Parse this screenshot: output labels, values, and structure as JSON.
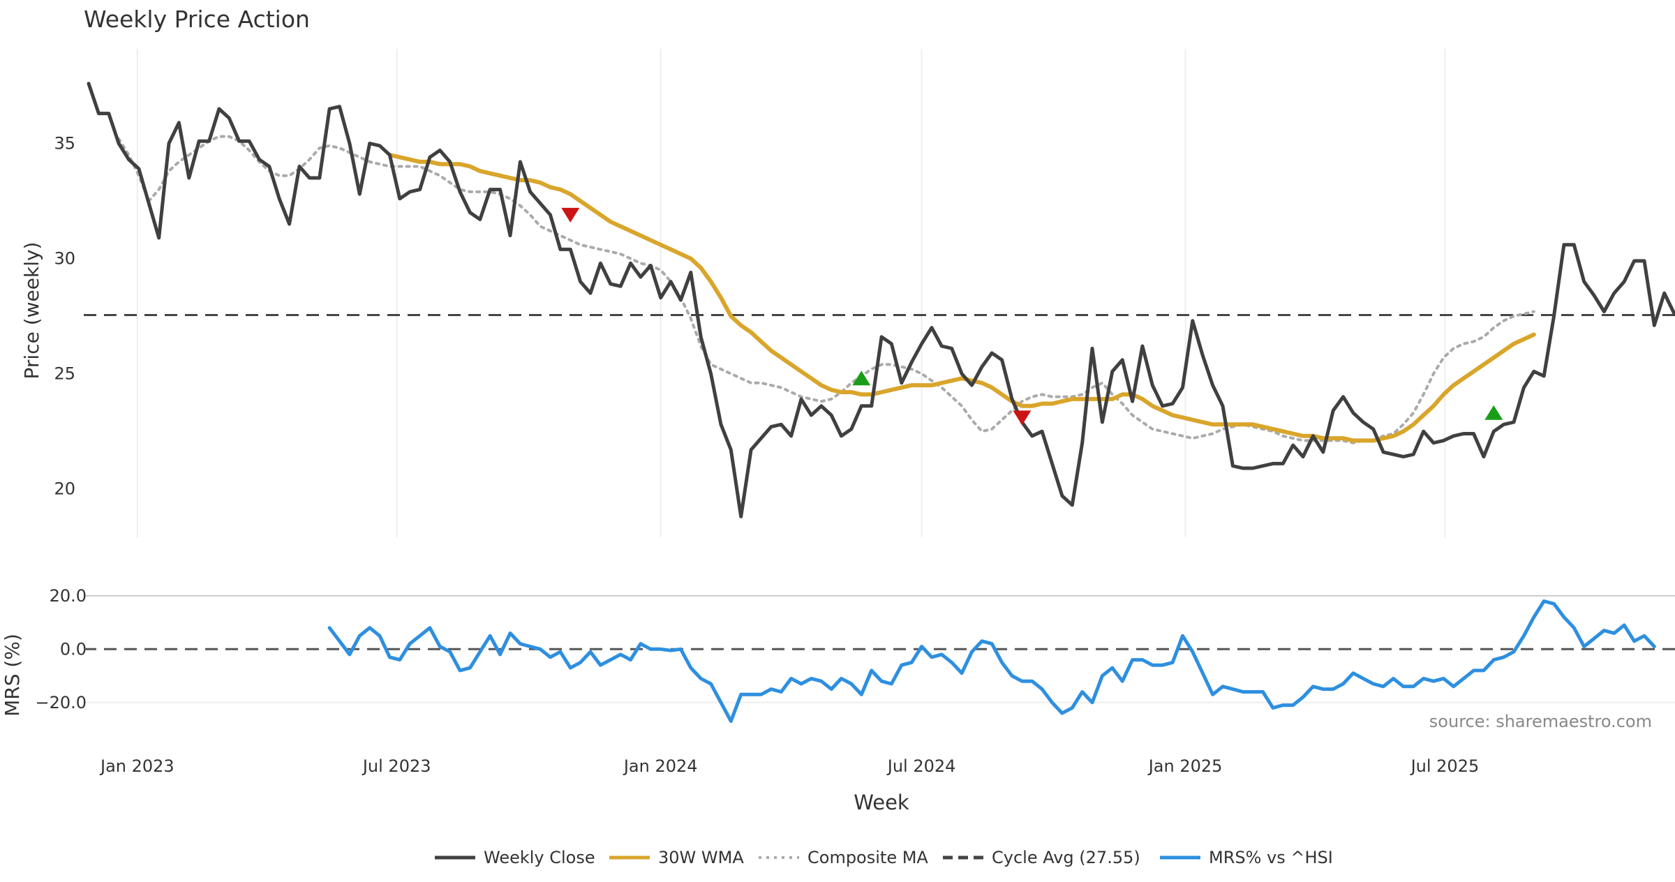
{
  "title": "Weekly Price Action",
  "source": "source: sharemaestro.com",
  "colors": {
    "weekly_close": "#404040",
    "wma": "#d9a52b",
    "composite_ma": "#aaaaaa",
    "cycle_avg": "#444444",
    "mrs": "#2e8fe0",
    "buy_marker": "#1a9e1a",
    "sell_marker": "#cc1414",
    "grid": "#eeeeee"
  },
  "legend": [
    {
      "label": "Weekly Close",
      "style": "solid",
      "color_key": "weekly_close"
    },
    {
      "label": "30W WMA",
      "style": "solid",
      "color_key": "wma"
    },
    {
      "label": "Composite MA",
      "style": "dotted",
      "color_key": "composite_ma"
    },
    {
      "label": "Cycle Avg (27.55)",
      "style": "dashed",
      "color_key": "cycle_avg"
    },
    {
      "label": "MRS% vs ^HSI",
      "style": "solid",
      "color_key": "mrs"
    }
  ],
  "chart_data": [
    {
      "type": "line",
      "panel": "price",
      "ylabel": "Price (weekly)",
      "xlabel": "Week",
      "x_ticks": [
        "Jan 2023",
        "Jul 2023",
        "Jan 2024",
        "Jul 2024",
        "Jan 2025",
        "Jul 2025"
      ],
      "y_ticks": [
        "20",
        "25",
        "30",
        "35"
      ],
      "ylim": [
        17.9,
        38.5
      ],
      "grid": "vertical",
      "reference_line": {
        "name": "Cycle Avg (27.55)",
        "value": 27.55
      },
      "series": [
        {
          "name": "Weekly Close",
          "x_start": "2022-11-28",
          "step_days": 7,
          "values": [
            37.6,
            36.3,
            36.3,
            35.0,
            34.3,
            33.9,
            32.4,
            30.9,
            35.0,
            35.9,
            33.5,
            35.1,
            35.1,
            36.5,
            36.1,
            35.1,
            35.1,
            34.3,
            34.0,
            32.6,
            31.5,
            34.0,
            33.5,
            33.5,
            36.5,
            36.6,
            35.0,
            32.8,
            35.0,
            34.9,
            34.5,
            32.6,
            32.9,
            33.0,
            34.4,
            34.7,
            34.2,
            32.9,
            32.0,
            31.7,
            33.0,
            33.0,
            31.0,
            34.2,
            32.9,
            32.4,
            31.9,
            30.4,
            30.4,
            29.0,
            28.5,
            29.8,
            28.9,
            28.8,
            29.8,
            29.2,
            29.7,
            28.3,
            29.0,
            28.2,
            29.4,
            26.6,
            25.0,
            22.8,
            21.7,
            18.8,
            21.7,
            22.2,
            22.7,
            22.8,
            22.3,
            23.9,
            23.2,
            23.6,
            23.2,
            22.3,
            22.6,
            23.6,
            23.6,
            26.6,
            26.3,
            24.6,
            25.5,
            26.3,
            27.0,
            26.2,
            26.1,
            25.0,
            24.5,
            25.3,
            25.9,
            25.6,
            23.9,
            22.9,
            22.3,
            22.5,
            21.1,
            19.7,
            19.3,
            22.0,
            26.1,
            22.9,
            25.1,
            25.6,
            23.8,
            26.2,
            24.5,
            23.6,
            23.7,
            24.4,
            27.3,
            25.8,
            24.5,
            23.6,
            21.0,
            20.9,
            20.9,
            21.0,
            21.1,
            21.1,
            21.9,
            21.4,
            22.3,
            21.6,
            23.4,
            24.0,
            23.3,
            22.9,
            22.6,
            21.6,
            21.5,
            21.4,
            21.5,
            22.5,
            22.0,
            22.1,
            22.3,
            22.4,
            22.4,
            21.4,
            22.5,
            22.8,
            22.9,
            24.4,
            25.1,
            24.9,
            27.5,
            30.6,
            30.6,
            29.0,
            28.4,
            27.7,
            28.5,
            29.0,
            29.9,
            29.9,
            27.1,
            28.5,
            27.6
          ]
        },
        {
          "name": "30W WMA",
          "x_start": "2023-06-26",
          "step_days": 7,
          "values": [
            34.5,
            34.4,
            34.3,
            34.2,
            34.2,
            34.1,
            34.1,
            34.1,
            34.0,
            33.8,
            33.7,
            33.6,
            33.5,
            33.4,
            33.4,
            33.3,
            33.1,
            33.0,
            32.8,
            32.5,
            32.2,
            31.9,
            31.6,
            31.4,
            31.2,
            31.0,
            30.8,
            30.6,
            30.4,
            30.2,
            30.0,
            29.6,
            29.0,
            28.3,
            27.5,
            27.1,
            26.8,
            26.4,
            26.0,
            25.7,
            25.4,
            25.1,
            24.8,
            24.5,
            24.3,
            24.2,
            24.2,
            24.1,
            24.1,
            24.2,
            24.3,
            24.4,
            24.5,
            24.5,
            24.5,
            24.6,
            24.7,
            24.8,
            24.7,
            24.6,
            24.4,
            24.1,
            23.8,
            23.6,
            23.6,
            23.7,
            23.7,
            23.8,
            23.9,
            23.9,
            23.9,
            23.9,
            23.9,
            24.1,
            24.1,
            23.9,
            23.6,
            23.4,
            23.2,
            23.1,
            23.0,
            22.9,
            22.8,
            22.8,
            22.8,
            22.8,
            22.8,
            22.7,
            22.6,
            22.5,
            22.4,
            22.3,
            22.3,
            22.2,
            22.2,
            22.2,
            22.1,
            22.1,
            22.1,
            22.2,
            22.3,
            22.5,
            22.8,
            23.2,
            23.6,
            24.1,
            24.5,
            24.8,
            25.1,
            25.4,
            25.7,
            26.0,
            26.3,
            26.5,
            26.7
          ]
        },
        {
          "name": "Composite MA",
          "x_start": "2022-12-19",
          "step_days": 7,
          "values": [
            35.2,
            34.5,
            33.6,
            32.5,
            33.0,
            33.8,
            34.2,
            34.5,
            34.8,
            35.1,
            35.3,
            35.3,
            35.1,
            34.7,
            34.2,
            33.8,
            33.6,
            33.6,
            33.9,
            34.3,
            34.8,
            34.9,
            34.8,
            34.6,
            34.4,
            34.2,
            34.1,
            34.0,
            34.0,
            34.0,
            34.0,
            33.8,
            33.6,
            33.3,
            33.0,
            32.9,
            32.9,
            32.9,
            32.8,
            32.6,
            32.3,
            31.9,
            31.4,
            31.2,
            31.0,
            30.8,
            30.6,
            30.5,
            30.4,
            30.3,
            30.2,
            30.0,
            29.8,
            29.7,
            29.5,
            29.0,
            28.3,
            27.4,
            26.2,
            25.4,
            25.2,
            25.0,
            24.8,
            24.6,
            24.6,
            24.5,
            24.4,
            24.2,
            24.0,
            23.9,
            23.8,
            23.9,
            24.2,
            24.6,
            24.9,
            25.2,
            25.4,
            25.4,
            25.3,
            25.2,
            25.0,
            24.7,
            24.4,
            24.0,
            23.6,
            23.0,
            22.5,
            22.6,
            23.0,
            23.4,
            23.8,
            24.0,
            24.1,
            24.0,
            24.0,
            24.0,
            24.1,
            24.4,
            24.6,
            24.1,
            23.7,
            23.2,
            22.9,
            22.6,
            22.5,
            22.4,
            22.3,
            22.2,
            22.3,
            22.4,
            22.6,
            22.7,
            22.8,
            22.7,
            22.6,
            22.5,
            22.3,
            22.2,
            22.1,
            22.1,
            22.1,
            22.1,
            22.1,
            22.0,
            22.1,
            22.1,
            22.3,
            22.4,
            22.8,
            23.3,
            24.1,
            25.0,
            25.7,
            26.1,
            26.3,
            26.4,
            26.6,
            27.0,
            27.3,
            27.5,
            27.6,
            27.7
          ]
        }
      ],
      "markers": [
        {
          "type": "sell",
          "shape": "down-triangle",
          "x": "2023-10-30",
          "y": 31.9
        },
        {
          "type": "buy",
          "shape": "up-triangle",
          "x": "2024-05-20",
          "y": 24.8
        },
        {
          "type": "sell",
          "shape": "down-triangle",
          "x": "2024-09-09",
          "y": 23.1
        },
        {
          "type": "buy",
          "shape": "up-triangle",
          "x": "2025-08-04",
          "y": 23.3
        }
      ]
    },
    {
      "type": "line",
      "panel": "mrs",
      "ylabel": "MRS (%)",
      "y_ticks": [
        "20.0",
        "0.0",
        "−20.0"
      ],
      "ylim": [
        -30,
        21
      ],
      "reference_line": {
        "value": 0
      },
      "series": [
        {
          "name": "MRS% vs ^HSI",
          "x_start": "2023-05-15",
          "step_days": 7,
          "values": [
            8,
            3,
            -2,
            5,
            8,
            5,
            -3,
            -4,
            2,
            5,
            8,
            1,
            -1,
            -8,
            -7,
            -1,
            5,
            -2,
            6,
            2,
            1,
            0,
            -3,
            -1,
            -7,
            -5,
            -1,
            -6,
            -4,
            -2,
            -4,
            2,
            0,
            0,
            -0.5,
            0,
            -7,
            -11,
            -13,
            -20,
            -27,
            -17,
            -17,
            -17,
            -15,
            -16,
            -11,
            -13,
            -11,
            -12,
            -15,
            -11,
            -13,
            -17,
            -8,
            -12,
            -13,
            -6,
            -5,
            1,
            -3,
            -2,
            -5,
            -9,
            -1,
            3,
            2,
            -5,
            -10,
            -12,
            -12,
            -15,
            -20,
            -24,
            -22,
            -16,
            -20,
            -10,
            -7,
            -12,
            -4,
            -4,
            -6,
            -6,
            -5,
            5,
            -1,
            -9,
            -17,
            -14,
            -15,
            -16,
            -16,
            -16,
            -22,
            -21,
            -21,
            -18,
            -14,
            -15,
            -15,
            -13,
            -9,
            -11,
            -13,
            -14,
            -11,
            -14,
            -14,
            -11,
            -12,
            -11,
            -14,
            -11,
            -8,
            -8,
            -4,
            -3,
            -1,
            5,
            12,
            18,
            17,
            12,
            8,
            1,
            4,
            7,
            6,
            9,
            3,
            5,
            1
          ]
        }
      ]
    }
  ]
}
